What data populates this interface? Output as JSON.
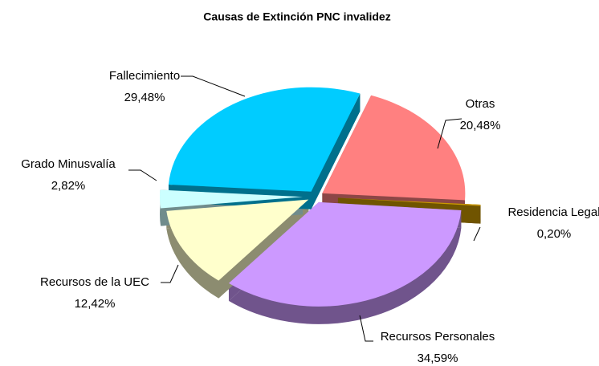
{
  "chart_data": {
    "type": "pie",
    "title": "Causas de Extinción PNC invalidez",
    "categories": [
      "Otras",
      "Residencia Legal",
      "Recursos Personales",
      "Recursos de la UEC",
      "Grado Minusvalía",
      "Fallecimiento"
    ],
    "values": [
      20.48,
      0.2,
      34.59,
      12.42,
      2.82,
      29.48
    ],
    "value_labels": [
      "20,48%",
      "0,20%",
      "34,59%",
      "12,42%",
      "2,82%",
      "29,48%"
    ],
    "colors": [
      "#ff8080",
      "#cc9900",
      "#cc99ff",
      "#ffffcc",
      "#ccffff",
      "#00ccff"
    ]
  }
}
